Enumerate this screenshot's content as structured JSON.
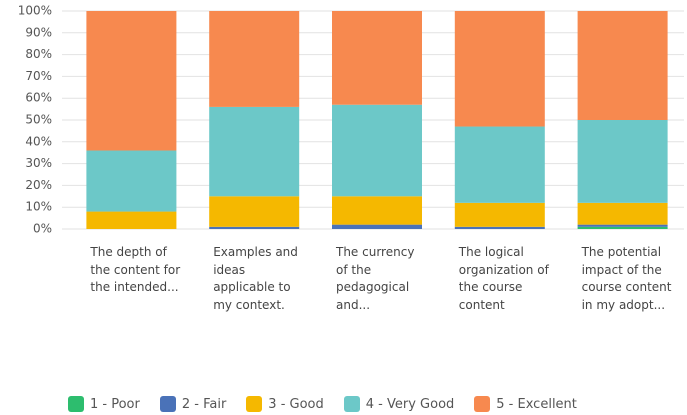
{
  "chart_data": {
    "type": "stacked_bar",
    "categories": [
      "The depth of the content for the intended...",
      "Examples and ideas applicable to my context.",
      "The currency of the pedagogical and...",
      "The logical organization of the course content",
      "The potential impact of the course content in my adopt..."
    ],
    "series": [
      {
        "name": "1 - Poor",
        "color": "#2dbd6e",
        "values": [
          0,
          0,
          0,
          0,
          1
        ]
      },
      {
        "name": "2 - Fair",
        "color": "#4a72b8",
        "values": [
          0,
          1,
          2,
          1,
          1
        ]
      },
      {
        "name": "3 - Good",
        "color": "#f5b800",
        "values": [
          8,
          14,
          13,
          11,
          10
        ]
      },
      {
        "name": "4 - Very Good",
        "color": "#6cc8c8",
        "values": [
          28,
          41,
          42,
          35,
          38
        ]
      },
      {
        "name": "5 - Excellent",
        "color": "#f7894f",
        "values": [
          64,
          44,
          43,
          53,
          50
        ]
      }
    ],
    "ylim": [
      0,
      100
    ],
    "yticks": [
      {
        "value": 0,
        "label": "0%"
      },
      {
        "value": 10,
        "label": "10%"
      },
      {
        "value": 20,
        "label": "20%"
      },
      {
        "value": 30,
        "label": "30%"
      },
      {
        "value": 40,
        "label": "40%"
      },
      {
        "value": 50,
        "label": "50%"
      },
      {
        "value": 60,
        "label": "60%"
      },
      {
        "value": 70,
        "label": "70%"
      },
      {
        "value": 80,
        "label": "80%"
      },
      {
        "value": 90,
        "label": "90%"
      },
      {
        "value": 100,
        "label": "100%"
      }
    ],
    "grid": true,
    "legend": "bottom"
  }
}
